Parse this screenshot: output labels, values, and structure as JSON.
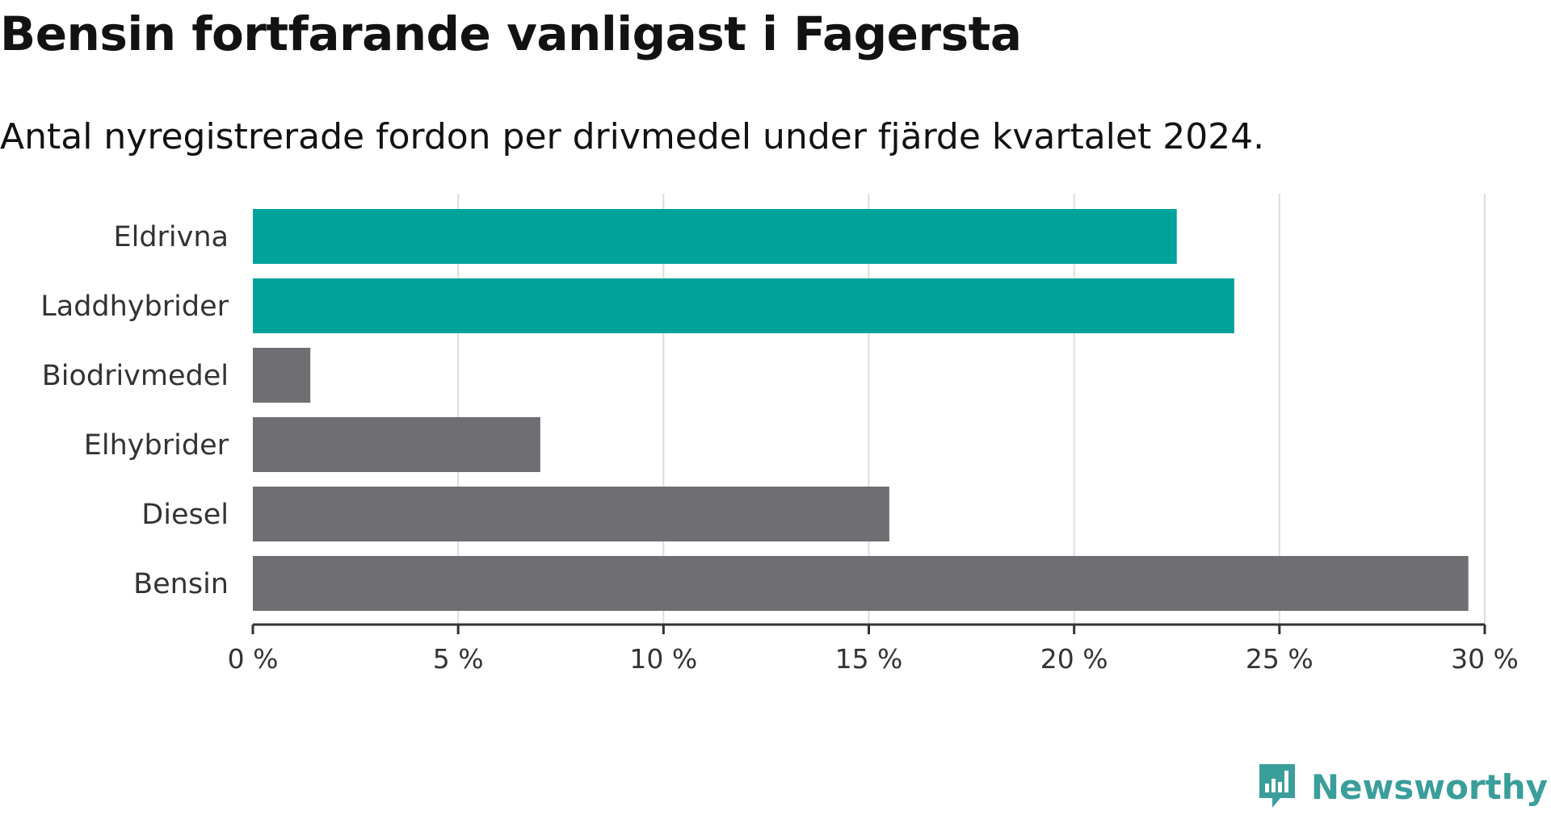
{
  "header": {
    "title": "Bensin fortfarande vanligast i Fagersta",
    "subtitle": "Antal nyregistrerade fordon per drivmedel under fjärde kvartalet 2024."
  },
  "chart_data": {
    "type": "bar",
    "orientation": "horizontal",
    "categories": [
      "Eldrivna",
      "Laddhybrider",
      "Biodrivmedel",
      "Elhybrider",
      "Diesel",
      "Bensin"
    ],
    "values": [
      22.5,
      23.9,
      1.4,
      7.0,
      15.5,
      29.6
    ],
    "highlighted": [
      true,
      true,
      false,
      false,
      false,
      false
    ],
    "xlim": [
      0,
      30
    ],
    "xticks": [
      0,
      5,
      10,
      15,
      20,
      25,
      30
    ],
    "xtick_labels": [
      "0 %",
      "5 %",
      "10 %",
      "15 %",
      "20 %",
      "25 %",
      "30 %"
    ],
    "grid": true,
    "colors": {
      "highlight": "#00a39a",
      "default": "#6e6e73",
      "grid": "#dddddd",
      "axis": "#333333"
    }
  },
  "branding": {
    "name": "Newsworthy",
    "icon": "newsworthy-logo-icon",
    "color": "#3a9e9b"
  }
}
